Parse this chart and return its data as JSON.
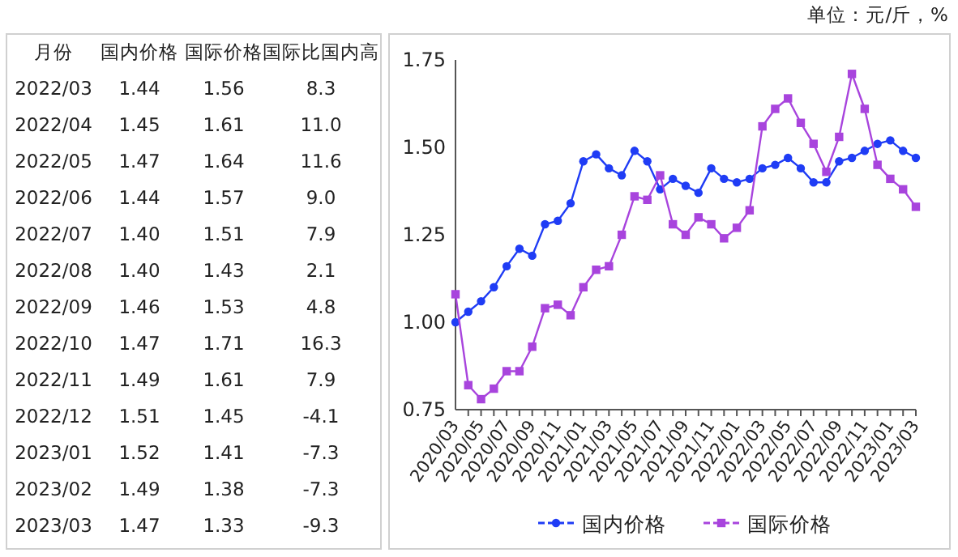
{
  "chart_data": [
    {
      "type": "other",
      "xlabel": "月份",
      "categories": [
        "2022/03",
        "2022/04",
        "2022/05",
        "2022/06",
        "2022/07",
        "2022/08",
        "2022/09",
        "2022/10",
        "2022/11",
        "2022/12",
        "2023/01",
        "2023/02",
        "2023/03"
      ],
      "series": [
        {
          "name": "国内价格",
          "values": [
            1.44,
            1.45,
            1.47,
            1.44,
            1.4,
            1.4,
            1.46,
            1.47,
            1.49,
            1.51,
            1.52,
            1.49,
            1.47
          ],
          "value_labels": [
            "1.44",
            "1.45",
            "1.47",
            "1.44",
            "1.40",
            "1.40",
            "1.46",
            "1.47",
            "1.49",
            "1.51",
            "1.52",
            "1.49",
            "1.47"
          ]
        },
        {
          "name": "国际价格",
          "values": [
            1.56,
            1.61,
            1.64,
            1.57,
            1.51,
            1.43,
            1.53,
            1.71,
            1.61,
            1.45,
            1.41,
            1.38,
            1.33
          ],
          "value_labels": [
            "1.56",
            "1.61",
            "1.64",
            "1.57",
            "1.51",
            "1.43",
            "1.53",
            "1.71",
            "1.61",
            "1.45",
            "1.41",
            "1.38",
            "1.33"
          ]
        },
        {
          "name": "国际比国内高",
          "values": [
            8.3,
            11.0,
            11.6,
            9.0,
            7.9,
            2.1,
            4.8,
            16.3,
            7.9,
            -4.1,
            -7.3,
            -7.3,
            -9.3
          ],
          "value_labels": [
            "8.3",
            "11.0",
            "11.6",
            "9.0",
            "7.9",
            "2.1",
            "4.8",
            "16.3",
            "7.9",
            "-4.1",
            "-7.3",
            "-7.3",
            "-9.3"
          ]
        }
      ]
    },
    {
      "type": "line",
      "annotations": [
        "单位：元/斤，%"
      ],
      "categories": [
        "2020/03",
        null,
        "2020/05",
        null,
        "2020/07",
        null,
        "2020/09",
        null,
        "2020/11",
        null,
        "2021/01",
        null,
        "2021/03",
        null,
        "2021/05",
        null,
        "2021/07",
        null,
        "2021/09",
        null,
        "2021/11",
        null,
        "2022/01",
        null,
        "2022/03",
        null,
        "2022/05",
        null,
        "2022/07",
        null,
        "2022/09",
        null,
        "2022/11",
        null,
        "2023/01",
        null,
        "2023/03"
      ],
      "series": [
        {
          "name": "国内价格",
          "color": "#1f3cf5",
          "marker": "circle",
          "values": [
            1.0,
            1.03,
            1.06,
            1.1,
            1.16,
            1.21,
            1.19,
            1.28,
            1.29,
            1.34,
            1.46,
            1.48,
            1.44,
            1.42,
            1.49,
            1.46,
            1.38,
            1.41,
            1.39,
            1.37,
            1.44,
            1.41,
            1.4,
            1.41,
            1.44,
            1.45,
            1.47,
            1.44,
            1.4,
            1.4,
            1.46,
            1.47,
            1.49,
            1.51,
            1.52,
            1.49,
            1.47
          ]
        },
        {
          "name": "国际价格",
          "color": "#a844dd",
          "marker": "square",
          "values": [
            1.08,
            0.82,
            0.78,
            0.81,
            0.86,
            0.86,
            0.93,
            1.04,
            1.05,
            1.02,
            1.1,
            1.15,
            1.16,
            1.25,
            1.36,
            1.35,
            1.42,
            1.28,
            1.25,
            1.3,
            1.28,
            1.24,
            1.27,
            1.32,
            1.56,
            1.61,
            1.64,
            1.57,
            1.51,
            1.43,
            1.53,
            1.71,
            1.61,
            1.45,
            1.41,
            1.38,
            1.33
          ]
        }
      ],
      "ylim": [
        0.75,
        1.75
      ],
      "yticks": [
        {
          "value": 0.75,
          "label": "0.75"
        },
        {
          "value": 1.0,
          "label": "1.00"
        },
        {
          "value": 1.25,
          "label": "1.25"
        },
        {
          "value": 1.5,
          "label": "1.50"
        },
        {
          "value": 1.75,
          "label": "1.75"
        }
      ],
      "grid": false,
      "legend": "bottom",
      "line_style": "solid"
    }
  ]
}
